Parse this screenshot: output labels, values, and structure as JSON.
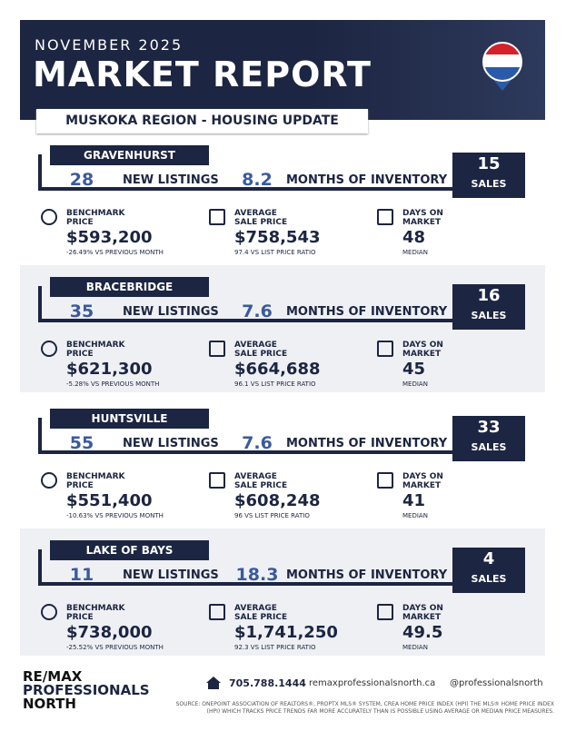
{
  "header": {
    "date": "NOVEMBER 2025",
    "title": "MARKET REPORT",
    "subtitle": "MUSKOKA REGION - HOUSING UPDATE"
  },
  "sections": [
    {
      "name": "GRAVENHURST",
      "new_listings": "28",
      "new_listings_label": "NEW LISTINGS",
      "months": "8.2",
      "months_label": "MONTHS OF INVENTORY",
      "sales": "15",
      "sales_label": "SALES",
      "benchmark_label": "BENCHMARK PRICE",
      "benchmark": "$593,200",
      "benchmark_note": "-26.49% VS PREVIOUS MONTH",
      "average_label": "AVERAGE SALE PRICE",
      "average": "$758,543",
      "average_note": "97.4 VS LIST PRICE RATIO",
      "days_label": "DAYS ON MARKET",
      "days": "48",
      "days_note": "MEDIAN"
    },
    {
      "name": "BRACEBRIDGE",
      "new_listings": "35",
      "new_listings_label": "NEW LISTINGS",
      "months": "7.6",
      "months_label": "MONTHS OF INVENTORY",
      "sales": "16",
      "sales_label": "SALES",
      "benchmark_label": "BENCHMARK PRICE",
      "benchmark": "$621,300",
      "benchmark_note": "-5.28% VS PREVIOUS MONTH",
      "average_label": "AVERAGE SALE PRICE",
      "average": "$664,688",
      "average_note": "96.1 VS LIST PRICE RATIO",
      "days_label": "DAYS ON MARKET",
      "days": "45",
      "days_note": "MEDIAN"
    },
    {
      "name": "HUNTSVILLE",
      "new_listings": "55",
      "new_listings_label": "NEW LISTINGS",
      "months": "7.6",
      "months_label": "MONTHS OF INVENTORY",
      "sales": "33",
      "sales_label": "SALES",
      "benchmark_label": "BENCHMARK PRICE",
      "benchmark": "$551,400",
      "benchmark_note": "-10.63% VS PREVIOUS MONTH",
      "average_label": "AVERAGE SALE PRICE",
      "average": "$608,248",
      "average_note": "96 VS LIST PRICE RATIO",
      "days_label": "DAYS ON MARKET",
      "days": "41",
      "days_note": "MEDIAN"
    },
    {
      "name": "LAKE OF BAYS",
      "new_listings": "11",
      "new_listings_label": "NEW LISTINGS",
      "months": "18.3",
      "months_label": "MONTHS OF INVENTORY",
      "sales": "4",
      "sales_label": "SALES",
      "benchmark_label": "BENCHMARK PRICE",
      "benchmark": "$738,000",
      "benchmark_note": "-25.52% VS PREVIOUS MONTH",
      "average_label": "AVERAGE SALE PRICE",
      "average": "$1,741,250",
      "average_note": "92.3 VS LIST PRICE RATIO",
      "days_label": "DAYS ON MARKET",
      "days": "49.5",
      "days_note": "MEDIAN"
    }
  ],
  "footer": {
    "brand": "RE/MAX",
    "brand_line2": "PROFESSIONALS",
    "brand_line3": "NORTH",
    "phone": "705.788.1444",
    "website": "remaxprofessionalsnorth.ca",
    "social": "@professionalsnorth",
    "source": "SOURCE: ONEPOINT ASSOCIATION OF REALTORS®, PROPTX MLS® SYSTEM, CREA HOME PRICE INDEX (HPI) THE MLS® HOME PRICE INDEX (HPI) WHICH TRACKS PRICE TRENDS FAR MORE ACCURATELY THAN IS POSSIBLE USING AVERAGE OR MEDIAN PRICE MEASURES."
  }
}
